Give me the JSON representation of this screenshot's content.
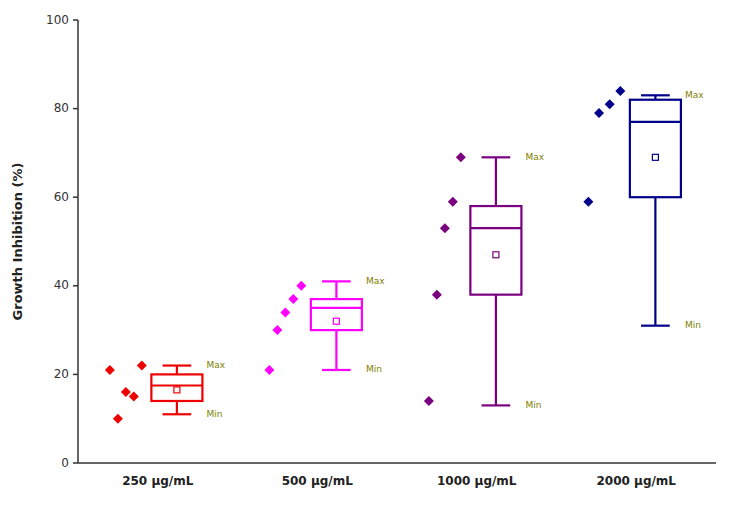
{
  "chart_data": {
    "type": "box",
    "ylabel": "Growth Inhibition (%)",
    "categories": [
      "250 μg/mL",
      "500 μg/mL",
      "1000 μg/mL",
      "2000 μg/mL"
    ],
    "colors": [
      "#EE0000",
      "#FF00FF",
      "#7B0080",
      "#00008B"
    ],
    "boxes": [
      {
        "q1": 14,
        "median": 17.5,
        "q3": 20,
        "whislo": 11,
        "whishi": 22,
        "mean": 16.5,
        "points": [
          21,
          10,
          16,
          15,
          22
        ]
      },
      {
        "q1": 30,
        "median": 35,
        "q3": 37,
        "whislo": 21,
        "whishi": 41,
        "mean": 32,
        "points": [
          21,
          30,
          34,
          37,
          40
        ]
      },
      {
        "q1": 38,
        "median": 53,
        "q3": 58,
        "whislo": 13,
        "whishi": 69,
        "mean": 47,
        "points": [
          14,
          38,
          53,
          59,
          69
        ]
      },
      {
        "q1": 60,
        "median": 77,
        "q3": 82,
        "whislo": 31,
        "whishi": 83,
        "mean": 69,
        "points": [
          59,
          79,
          81,
          84
        ]
      }
    ],
    "max_label": "Max",
    "min_label": "Min",
    "ylim": [
      0,
      100
    ],
    "yticks": [
      0,
      20,
      40,
      60,
      80,
      100
    ],
    "grid": false
  }
}
